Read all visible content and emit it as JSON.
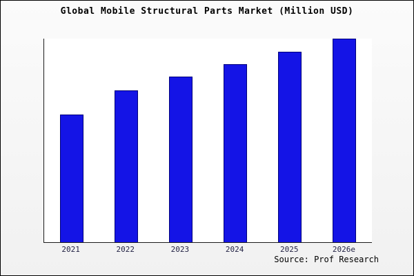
{
  "title": "Global Mobile Structural Parts Market (Million USD)",
  "source": "Source: Prof Research",
  "colors": {
    "bar_fill": "#1414e6",
    "bar_border": "#00007a",
    "background": "#f4f4f4",
    "plot_background": "#ffffff",
    "axis": "#1a1a1a",
    "text": "#000000"
  },
  "chart_data": {
    "type": "bar",
    "title": "Global Mobile Structural Parts Market (Million USD)",
    "categories": [
      "2021",
      "2022",
      "2023",
      "2024",
      "2025",
      "2026e"
    ],
    "values": [
      188,
      224,
      244,
      262,
      281,
      300
    ],
    "xlabel": "",
    "ylabel": "",
    "ylim": [
      0,
      300
    ],
    "grid": false,
    "legend": false,
    "y_axis_labels_visible": false,
    "annotation": "Source: Prof Research"
  }
}
